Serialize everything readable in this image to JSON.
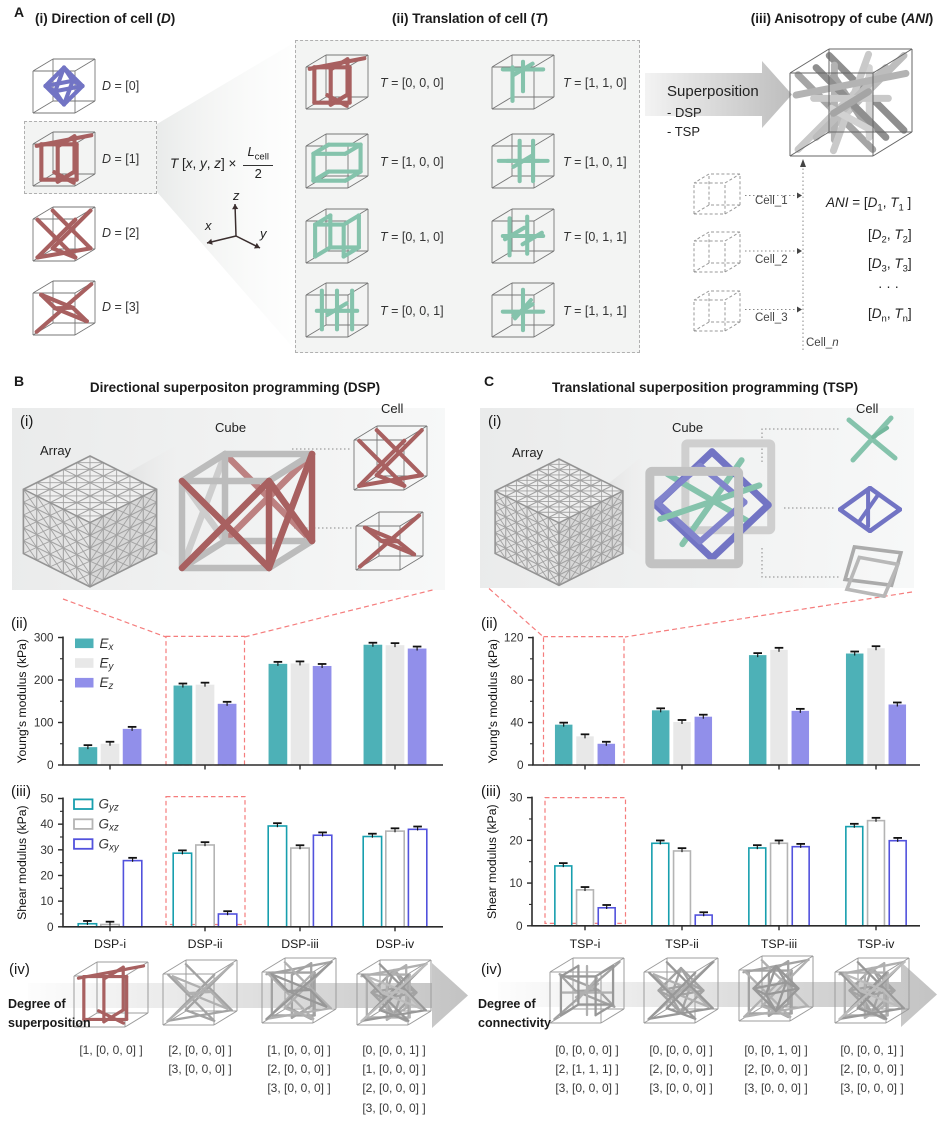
{
  "colors": {
    "teal_fill": "#4db1b7",
    "grey_fill": "#e8e8e8",
    "purple_fill": "#918fea",
    "teal_stroke": "#179fae",
    "grey_stroke": "#b4b4b4",
    "blue_stroke": "#5252dd",
    "red_strut": "#a86060",
    "purple_strut": "#7274c4",
    "teal_strut": "#85c3ac",
    "grey_strut": "#b0b0b0",
    "highlight_red": "#f57d7d",
    "axis": "#2b2b2b",
    "error_bar": "#111111"
  },
  "panelA": {
    "label": "A",
    "i": {
      "title": "(i) Direction of cell (*D*)",
      "cells": [
        {
          "label": "*D* = [0]"
        },
        {
          "label": "*D* = [1]"
        },
        {
          "label": "*D* = [2]"
        },
        {
          "label": "*D* = [3]"
        }
      ]
    },
    "formula": {
      "lhs": "*T* [*x*, *y*, *z*] ×",
      "num": "*L*~cell~",
      "den": "2"
    },
    "axes": {
      "up": "z",
      "left": "x",
      "right": "y"
    },
    "ii": {
      "title": "(ii) Translation of cell (*T*)",
      "cells": [
        {
          "label": "*T* = [0, 0, 0]"
        },
        {
          "label": "*T* = [1, 0, 0]"
        },
        {
          "label": "*T* = [0, 1, 0]"
        },
        {
          "label": "*T* = [0, 0, 1]"
        },
        {
          "label": "*T* = [1, 1, 0]"
        },
        {
          "label": "*T* = [1, 0, 1]"
        },
        {
          "label": "*T* = [0, 1, 1]"
        },
        {
          "label": "*T* = [1, 1, 1]"
        }
      ]
    },
    "iii": {
      "title": "(iii) Anisotropy of cube (*ANI*)",
      "superposition": "Superposition",
      "methods": [
        "- DSP",
        "- TSP"
      ],
      "cell_labels": [
        "Cell_1",
        "Cell_2",
        "Cell_3"
      ],
      "cell_n": "Cell_*n*",
      "ani_lines": [
        "*ANI* = [*D*~1~, *T*~1~ ]",
        "[*D*~2~, *T*~2~]",
        "[*D*~3~, *T*~3~]",
        "· · ·",
        "[*D*~n~, *T*~n~]"
      ]
    }
  },
  "panelB": {
    "label": "B",
    "title": "Directional superpositon programming (DSP)",
    "i_label": "(i)",
    "ii_label": "(ii)",
    "iii_label": "(iii)",
    "iv_label": "(iv)",
    "array_label": "Array",
    "cube_label": "Cube",
    "cell_label": "Cell",
    "iv_caption_line1": "Degree of",
    "iv_caption_line2": "superposition",
    "iv_groups": [
      {
        "lines": [
          "[1, [0, 0, 0] ]"
        ]
      },
      {
        "lines": [
          "[2, [0, 0, 0] ]",
          "[3, [0, 0, 0] ]"
        ]
      },
      {
        "lines": [
          "[1, [0, 0, 0] ]",
          "[2, [0, 0, 0] ]",
          "[3, [0, 0, 0] ]"
        ]
      },
      {
        "lines": [
          "[0, [0, 0, 1] ]",
          "[1, [0, 0, 0] ]",
          "[2, [0, 0, 0] ]",
          "[3, [0, 0, 0] ]"
        ]
      }
    ]
  },
  "panelC": {
    "label": "C",
    "title": "Translational superposition programming (TSP)",
    "i_label": "(i)",
    "ii_label": "(ii)",
    "iii_label": "(iii)",
    "iv_label": "(iv)",
    "array_label": "Array",
    "cube_label": "Cube",
    "cell_label": "Cell",
    "iv_caption_line1": "Degree of",
    "iv_caption_line2": "connectivity",
    "iv_groups": [
      {
        "lines": [
          "[0, [0, 0, 0] ]",
          "[2, [1, 1, 1] ]",
          "[3, [0, 0, 0] ]"
        ]
      },
      {
        "lines": [
          "[0, [0, 0, 0] ]",
          "[2, [0, 0, 0] ]",
          "[3, [0, 0, 0] ]"
        ]
      },
      {
        "lines": [
          "[0, [0, 1, 0] ]",
          "[2, [0, 0, 0] ]",
          "[3, [0, 0, 0] ]"
        ]
      },
      {
        "lines": [
          "[0, [0, 0, 1] ]",
          "[2, [0, 0, 0] ]",
          "[3, [0, 0, 0] ]"
        ]
      }
    ]
  },
  "chart_data": [
    {
      "id": "B-ii",
      "type": "bar",
      "ylabel": "Young's modulus (kPa)",
      "ylim": [
        0,
        300
      ],
      "yticks": [
        0,
        100,
        200,
        300
      ],
      "minor_step": 50,
      "categories": [
        "DSP-i",
        "DSP-ii",
        "DSP-iii",
        "DSP-iv"
      ],
      "show_categories": false,
      "legend": [
        "*E*~x~",
        "*E*~y~",
        "*E*~z~"
      ],
      "bar_style": "filled",
      "series": [
        {
          "name": "Ex",
          "values": [
            42,
            187,
            238,
            283
          ]
        },
        {
          "name": "Ey",
          "values": [
            50,
            189,
            239,
            282
          ]
        },
        {
          "name": "Ez",
          "values": [
            85,
            144,
            233,
            274
          ]
        }
      ],
      "error": 3,
      "highlight_index": 1
    },
    {
      "id": "B-iii",
      "type": "bar",
      "ylabel": "Shear modulus (kPa)",
      "ylim": [
        0,
        50
      ],
      "yticks": [
        0,
        10,
        20,
        30,
        40,
        50
      ],
      "minor_step": 5,
      "categories": [
        "DSP-i",
        "DSP-ii",
        "DSP-iii",
        "DSP-iv"
      ],
      "show_categories": true,
      "legend": [
        "*G*~yz~",
        "*G*~xz~",
        "*G*~xy~"
      ],
      "bar_style": "outline",
      "series": [
        {
          "name": "Gyz",
          "values": [
            1.5,
            29,
            39.6,
            35.5
          ]
        },
        {
          "name": "Gxz",
          "values": [
            1.2,
            32.2,
            31,
            37.6
          ]
        },
        {
          "name": "Gxy",
          "values": [
            26.1,
            5.3,
            36,
            38.3
          ]
        }
      ],
      "error": 0.5,
      "highlight_index": 1
    },
    {
      "id": "C-ii",
      "type": "bar",
      "ylabel": "Young's modulus (kPa)",
      "ylim": [
        0,
        120
      ],
      "yticks": [
        0,
        40,
        80,
        120
      ],
      "minor_step": 20,
      "categories": [
        "TSP-i",
        "TSP-ii",
        "TSP-iii",
        "TSP-iv"
      ],
      "show_categories": false,
      "legend": null,
      "bar_style": "filled",
      "series": [
        {
          "name": "Ex",
          "values": [
            38,
            51.5,
            103.5,
            105
          ]
        },
        {
          "name": "Ey",
          "values": [
            27,
            40.5,
            108.5,
            110
          ]
        },
        {
          "name": "Ez",
          "values": [
            20,
            45.5,
            51,
            57
          ]
        }
      ],
      "error": 1.5,
      "highlight_index": 0
    },
    {
      "id": "C-iii",
      "type": "bar",
      "ylabel": "Shear modulus (kPa)",
      "ylim": [
        0,
        30
      ],
      "yticks": [
        0,
        10,
        20,
        30
      ],
      "minor_step": 5,
      "categories": [
        "TSP-i",
        "TSP-ii",
        "TSP-iii",
        "TSP-iv"
      ],
      "show_categories": true,
      "legend": null,
      "bar_style": "outline",
      "series": [
        {
          "name": "Gyz",
          "values": [
            14.2,
            19.5,
            18.4,
            23.4
          ]
        },
        {
          "name": "Gxz",
          "values": [
            8.6,
            17.7,
            19.5,
            24.8
          ]
        },
        {
          "name": "Gxy",
          "values": [
            4.4,
            2.7,
            18.7,
            20.1
          ]
        }
      ],
      "error": 0.4,
      "highlight_index": 0
    }
  ]
}
